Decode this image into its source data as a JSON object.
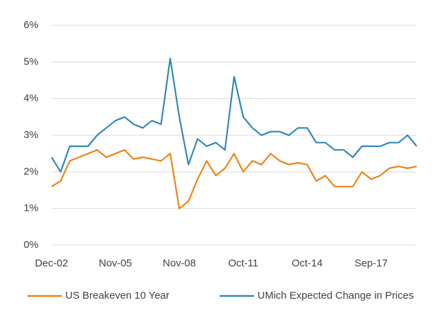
{
  "chart_data": {
    "type": "line",
    "categories": [
      "Dec-02",
      null,
      null,
      null,
      null,
      null,
      null,
      "Nov-05",
      null,
      null,
      null,
      null,
      null,
      null,
      "Nov-08",
      null,
      null,
      null,
      null,
      null,
      null,
      "Oct-11",
      null,
      null,
      null,
      null,
      null,
      null,
      "Oct-14",
      null,
      null,
      null,
      null,
      null,
      null,
      "Sep-17",
      null,
      null,
      null,
      null,
      null
    ],
    "series": [
      {
        "name": "US Breakeven 10 Year",
        "color": "#f0810f",
        "values": [
          1.6,
          1.75,
          2.3,
          2.4,
          2.5,
          2.6,
          2.4,
          2.5,
          2.6,
          2.35,
          2.4,
          2.35,
          2.3,
          2.5,
          1.0,
          1.2,
          1.8,
          2.3,
          1.9,
          2.1,
          2.5,
          2.0,
          2.3,
          2.2,
          2.5,
          2.3,
          2.2,
          2.25,
          2.2,
          1.75,
          1.9,
          1.6,
          1.6,
          1.6,
          2.0,
          1.8,
          1.9,
          2.1,
          2.15,
          2.1,
          2.15
        ]
      },
      {
        "name": "UMich Expected Change in Prices",
        "color": "#2e86b8",
        "values": [
          2.4,
          2.0,
          2.7,
          2.7,
          2.7,
          3.0,
          3.2,
          3.4,
          3.5,
          3.3,
          3.2,
          3.4,
          3.3,
          5.1,
          3.5,
          2.2,
          2.9,
          2.7,
          2.8,
          2.6,
          4.6,
          3.5,
          3.2,
          3.0,
          3.1,
          3.1,
          3.0,
          3.2,
          3.2,
          2.8,
          2.8,
          2.6,
          2.6,
          2.4,
          2.7,
          2.7,
          2.7,
          2.8,
          2.8,
          3.0,
          2.7
        ]
      }
    ],
    "ylim": [
      0,
      6
    ],
    "yticks": [
      {
        "value": 0,
        "label": "0%"
      },
      {
        "value": 1,
        "label": "1%"
      },
      {
        "value": 2,
        "label": "2%"
      },
      {
        "value": 3,
        "label": "3%"
      },
      {
        "value": 4,
        "label": "4%"
      },
      {
        "value": 5,
        "label": "5%"
      },
      {
        "value": 6,
        "label": "6%"
      }
    ],
    "grid": true,
    "legend": "bottom"
  }
}
